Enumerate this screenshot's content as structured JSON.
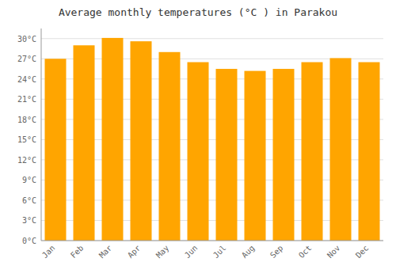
{
  "chart_data": {
    "type": "bar",
    "title": "Average monthly temperatures (°C ) in Parakou",
    "categories": [
      "Jan",
      "Feb",
      "Mar",
      "Apr",
      "May",
      "Jun",
      "Jul",
      "Aug",
      "Sep",
      "Oct",
      "Nov",
      "Dec"
    ],
    "values": [
      27.0,
      29.0,
      30.1,
      29.6,
      28.0,
      26.5,
      25.5,
      25.2,
      25.5,
      26.5,
      27.1,
      26.5
    ],
    "color": "#FFA500",
    "ylim": [
      0,
      31.5
    ],
    "yticks": [
      {
        "value": 0,
        "label": "0°C"
      },
      {
        "value": 3,
        "label": "3°C"
      },
      {
        "value": 6,
        "label": "6°C"
      },
      {
        "value": 9,
        "label": "9°C"
      },
      {
        "value": 12,
        "label": "12°C"
      },
      {
        "value": 15,
        "label": "15°C"
      },
      {
        "value": 18,
        "label": "18°C"
      },
      {
        "value": 21,
        "label": "21°C"
      },
      {
        "value": 24,
        "label": "24°C"
      },
      {
        "value": 27,
        "label": "27°C"
      },
      {
        "value": 30,
        "label": "30°C"
      }
    ],
    "grid": true
  }
}
